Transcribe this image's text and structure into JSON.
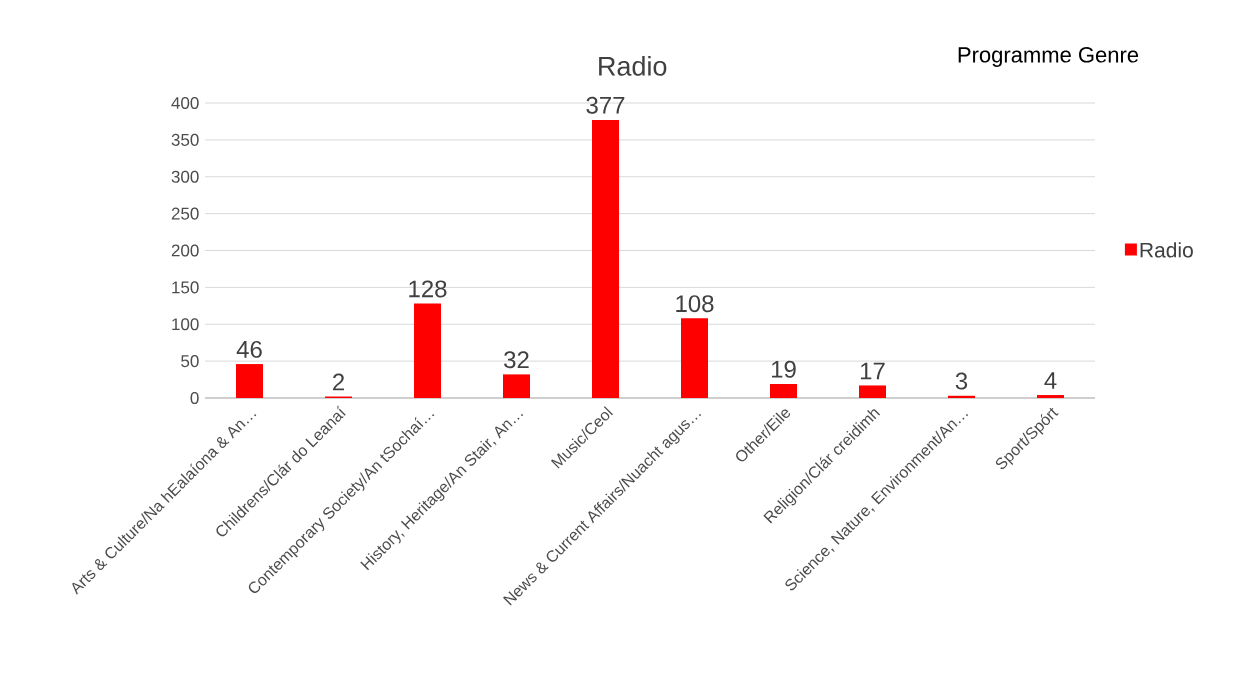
{
  "chart_data": {
    "type": "bar",
    "title": "Radio",
    "annotations": [
      "Programme Genre"
    ],
    "categories": [
      "Arts & Culture/Na hEalaíona & An…",
      "Childrens/Clár do Leanaí",
      "Contemporary Society/An tSochaí…",
      "History, Heritage/An Stair, An…",
      "Music/Ceol",
      "News & Current Affairs/Nuacht agus…",
      "Other/Eile",
      "Religion/Clár creidimh",
      "Science, Nature, Environment/An…",
      "Sport/Spórt"
    ],
    "series": [
      {
        "name": "Radio",
        "color": "#ff0000",
        "values": [
          46,
          2,
          128,
          32,
          377,
          108,
          19,
          17,
          3,
          4
        ]
      }
    ],
    "ylim": [
      0,
      400
    ],
    "yticks": [
      0,
      50,
      100,
      150,
      200,
      250,
      300,
      350,
      400
    ],
    "grid": "y",
    "legend": "right",
    "data_labels": true
  }
}
